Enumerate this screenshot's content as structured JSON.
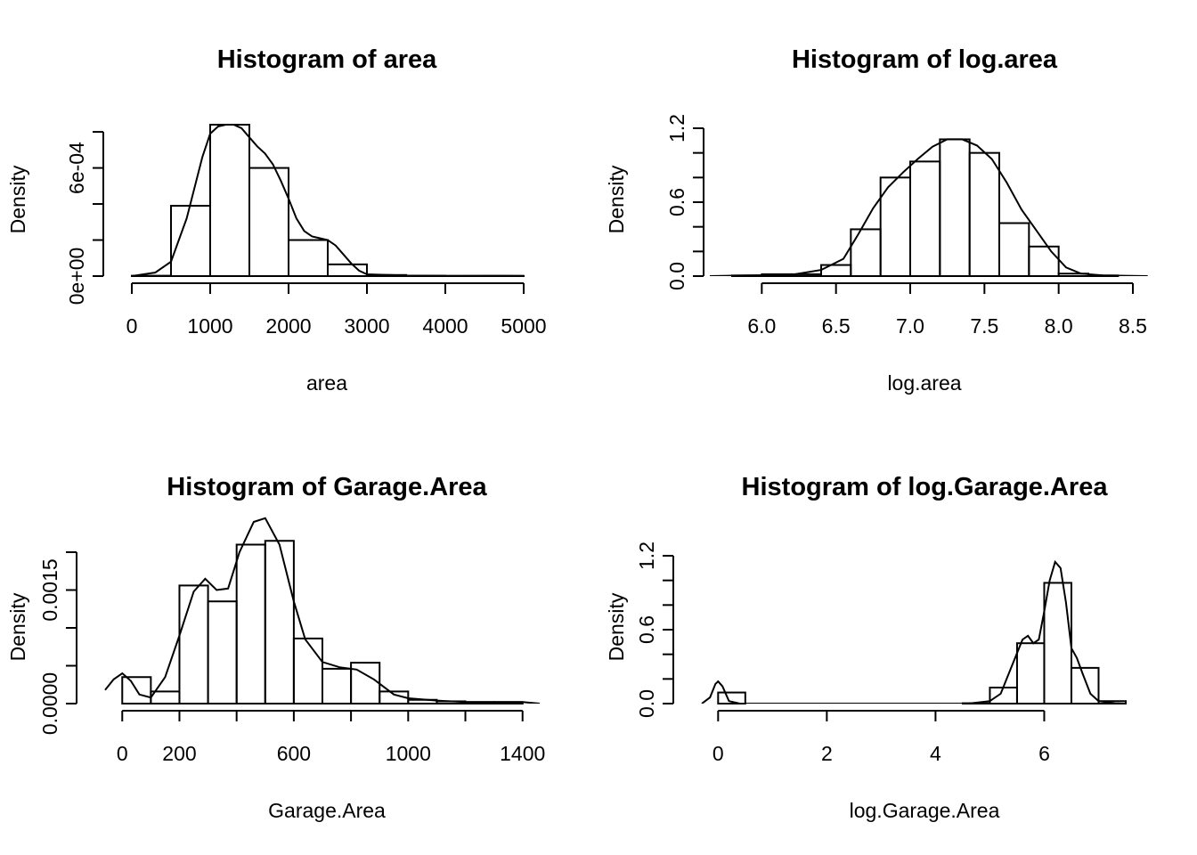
{
  "chart_data": [
    {
      "type": "bar",
      "title": "Histogram of area",
      "xlabel": "area",
      "ylabel": "Density",
      "breaks": [
        0,
        500,
        1000,
        1500,
        2000,
        2500,
        3000,
        3500,
        4000,
        4500,
        5000
      ],
      "values": [
        2e-06,
        0.00039,
        0.00084,
        0.0006,
        0.0002,
        6.5e-05,
        6e-06,
        2e-06,
        1e-06,
        1e-06
      ],
      "xlim": [
        0,
        5000
      ],
      "ylim": [
        0,
        0.00084
      ],
      "xticks": [
        0,
        1000,
        2000,
        3000,
        4000,
        5000
      ],
      "xtick_labels": [
        "0",
        "1000",
        "2000",
        "3000",
        "4000",
        "5000"
      ],
      "yticks": [
        0,
        0.0002,
        0.0004,
        0.0006,
        0.0008
      ],
      "ytick_labels": [
        "0e+00",
        "",
        "",
        "6e-04",
        ""
      ],
      "density": [
        [
          0,
          0
        ],
        [
          300,
          2e-05
        ],
        [
          500,
          8e-05
        ],
        [
          700,
          0.00032
        ],
        [
          900,
          0.00066
        ],
        [
          1000,
          0.00079
        ],
        [
          1100,
          0.00083
        ],
        [
          1200,
          0.00084
        ],
        [
          1300,
          0.00084
        ],
        [
          1400,
          0.00082
        ],
        [
          1500,
          0.00077
        ],
        [
          1600,
          0.00072
        ],
        [
          1700,
          0.00068
        ],
        [
          1800,
          0.00062
        ],
        [
          1900,
          0.00053
        ],
        [
          2000,
          0.00043
        ],
        [
          2100,
          0.00032
        ],
        [
          2200,
          0.00025
        ],
        [
          2300,
          0.00022
        ],
        [
          2400,
          0.00021
        ],
        [
          2500,
          0.0002
        ],
        [
          2600,
          0.00017
        ],
        [
          2700,
          0.00012
        ],
        [
          2800,
          7e-05
        ],
        [
          2900,
          3e-05
        ],
        [
          3000,
          1e-05
        ],
        [
          3500,
          3e-06
        ],
        [
          4000,
          1e-06
        ],
        [
          4700,
          2e-06
        ],
        [
          5000,
          1e-06
        ]
      ]
    },
    {
      "type": "bar",
      "title": "Histogram of log.area",
      "xlabel": "log.area",
      "ylabel": "Density",
      "breaks": [
        5.8,
        6.0,
        6.2,
        6.4,
        6.6,
        6.8,
        7.0,
        7.2,
        7.4,
        7.6,
        7.8,
        8.0,
        8.2,
        8.4
      ],
      "values": [
        0.005,
        0.015,
        0.015,
        0.09,
        0.38,
        0.8,
        0.93,
        1.11,
        1.0,
        0.43,
        0.24,
        0.02,
        0.005
      ],
      "xlim": [
        5.8,
        8.5
      ],
      "ylim": [
        0,
        1.2
      ],
      "xticks": [
        6.0,
        6.5,
        7.0,
        7.5,
        8.0,
        8.5
      ],
      "xtick_labels": [
        "6.0",
        "6.5",
        "7.0",
        "7.5",
        "8.0",
        "8.5"
      ],
      "yticks": [
        0,
        0.2,
        0.4,
        0.6,
        0.8,
        1.0,
        1.2
      ],
      "ytick_labels": [
        "0.0",
        "",
        "",
        "0.6",
        "",
        "",
        "1.2"
      ],
      "density": [
        [
          5.65,
          0
        ],
        [
          5.9,
          0.005
        ],
        [
          6.2,
          0.01
        ],
        [
          6.4,
          0.05
        ],
        [
          6.55,
          0.14
        ],
        [
          6.65,
          0.34
        ],
        [
          6.75,
          0.55
        ],
        [
          6.85,
          0.72
        ],
        [
          6.95,
          0.84
        ],
        [
          7.05,
          0.95
        ],
        [
          7.15,
          1.05
        ],
        [
          7.25,
          1.11
        ],
        [
          7.35,
          1.11
        ],
        [
          7.45,
          1.06
        ],
        [
          7.55,
          0.95
        ],
        [
          7.65,
          0.76
        ],
        [
          7.75,
          0.54
        ],
        [
          7.85,
          0.37
        ],
        [
          7.95,
          0.2
        ],
        [
          8.05,
          0.07
        ],
        [
          8.15,
          0.02
        ],
        [
          8.3,
          0.006
        ],
        [
          8.6,
          0
        ]
      ]
    },
    {
      "type": "bar",
      "title": "Histogram of Garage.Area",
      "xlabel": "Garage.Area",
      "ylabel": "Density",
      "breaks": [
        0,
        100,
        200,
        300,
        400,
        500,
        600,
        700,
        800,
        900,
        1000,
        1100,
        1200,
        1300,
        1400
      ],
      "values": [
        0.00035,
        0.00016,
        0.00156,
        0.00135,
        0.0021,
        0.00215,
        0.00086,
        0.00046,
        0.00054,
        0.00016,
        5e-05,
        3e-05,
        2e-05,
        2e-05
      ],
      "xlim": [
        -60,
        1460
      ],
      "ylim": [
        0,
        0.002
      ],
      "xticks": [
        0,
        200,
        400,
        600,
        800,
        1000,
        1200,
        1400
      ],
      "xtick_labels": [
        "0",
        "200",
        "",
        "600",
        "",
        "1000",
        "",
        "1400"
      ],
      "yticks": [
        0,
        0.0005,
        0.001,
        0.0015,
        0.002
      ],
      "ytick_labels": [
        "0.0000",
        "",
        "",
        "0.0015",
        ""
      ],
      "density": [
        [
          -60,
          0.00018
        ],
        [
          -30,
          0.00032
        ],
        [
          0,
          0.0004
        ],
        [
          30,
          0.0003
        ],
        [
          60,
          0.00012
        ],
        [
          100,
          8e-05
        ],
        [
          150,
          0.00035
        ],
        [
          200,
          0.0009
        ],
        [
          250,
          0.00148
        ],
        [
          290,
          0.00165
        ],
        [
          330,
          0.0015
        ],
        [
          370,
          0.00152
        ],
        [
          410,
          0.002
        ],
        [
          460,
          0.0024
        ],
        [
          500,
          0.00245
        ],
        [
          550,
          0.0021
        ],
        [
          600,
          0.00135
        ],
        [
          640,
          0.00085
        ],
        [
          700,
          0.00055
        ],
        [
          760,
          0.00048
        ],
        [
          820,
          0.00045
        ],
        [
          880,
          0.00032
        ],
        [
          950,
          0.00012
        ],
        [
          1000,
          7e-05
        ],
        [
          1100,
          4e-05
        ],
        [
          1200,
          2e-05
        ],
        [
          1300,
          2e-05
        ],
        [
          1400,
          2e-05
        ],
        [
          1460,
          0
        ]
      ]
    },
    {
      "type": "bar",
      "title": "Histogram of log.Garage.Area",
      "xlabel": "log.Garage.Area",
      "ylabel": "Density",
      "breaks": [
        0,
        0.5,
        1,
        1.5,
        2,
        2.5,
        3,
        3.5,
        4,
        4.5,
        5,
        5.5,
        6,
        6.5,
        7,
        7.5
      ],
      "values": [
        0.09,
        0,
        0,
        0,
        0,
        0,
        0,
        0,
        0,
        0.003,
        0.13,
        0.49,
        0.98,
        0.29,
        0.02
      ],
      "xlim": [
        -0.3,
        7.5
      ],
      "ylim": [
        0,
        1.2
      ],
      "xticks": [
        0,
        2,
        4,
        6
      ],
      "xtick_labels": [
        "0",
        "2",
        "4",
        "6"
      ],
      "yticks": [
        0,
        0.2,
        0.4,
        0.6,
        0.8,
        1.0,
        1.2
      ],
      "ytick_labels": [
        "0.0",
        "",
        "",
        "0.6",
        "",
        "",
        "1.2"
      ],
      "density": [
        [
          -0.3,
          0
        ],
        [
          -0.15,
          0.05
        ],
        [
          -0.05,
          0.16
        ],
        [
          0,
          0.18
        ],
        [
          0.08,
          0.14
        ],
        [
          0.2,
          0.02
        ],
        [
          0.4,
          0
        ],
        [
          4.6,
          0
        ],
        [
          5.0,
          0.02
        ],
        [
          5.2,
          0.08
        ],
        [
          5.4,
          0.3
        ],
        [
          5.6,
          0.52
        ],
        [
          5.7,
          0.55
        ],
        [
          5.8,
          0.49
        ],
        [
          5.9,
          0.52
        ],
        [
          6.0,
          0.75
        ],
        [
          6.1,
          1.0
        ],
        [
          6.2,
          1.15
        ],
        [
          6.3,
          1.1
        ],
        [
          6.4,
          0.82
        ],
        [
          6.5,
          0.45
        ],
        [
          6.6,
          0.37
        ],
        [
          6.7,
          0.25
        ],
        [
          6.85,
          0.08
        ],
        [
          7.0,
          0.02
        ],
        [
          7.3,
          0.003
        ],
        [
          7.5,
          0
        ]
      ]
    }
  ]
}
